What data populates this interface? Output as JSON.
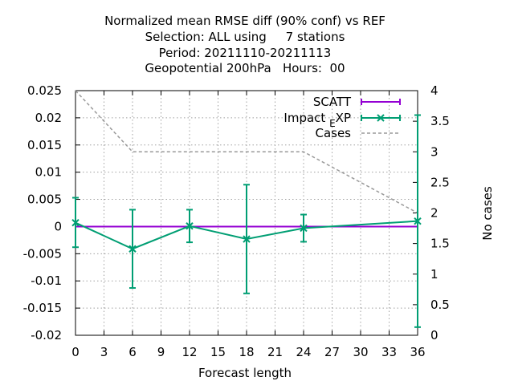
{
  "chart_data": {
    "type": "line",
    "title_lines": [
      "Normalized mean RMSE diff (90% conf) vs REF",
      "Selection: ALL using     7 stations",
      "Period: 20211110-20211113",
      "Geopotential 200hPa   Hours:  00"
    ],
    "xlabel": "Forecast length",
    "ylabel": "",
    "y2label": "No cases",
    "xlim": [
      0,
      36
    ],
    "ylim": [
      -0.02,
      0.025
    ],
    "y2lim": [
      0,
      4
    ],
    "xticks": [
      "0",
      "3",
      "6",
      "9",
      "12",
      "15",
      "18",
      "21",
      "24",
      "27",
      "30",
      "33",
      "36"
    ],
    "yticks": [
      "0.025",
      "0.02",
      "0.015",
      "0.01",
      "0.005",
      "0",
      "-0.005",
      "-0.01",
      "-0.015",
      "-0.02"
    ],
    "y2ticks": [
      "4",
      "3.5",
      "3",
      "2.5",
      "2",
      "1.5",
      "1",
      "0.5",
      "0"
    ],
    "grid": true,
    "legend_position": "top-right",
    "legend": {
      "scatt": "SCATT",
      "impact_prefix": "Impact",
      "impact_sub": "E",
      "impact_suffix": "XP",
      "cases": "Cases"
    },
    "series": [
      {
        "name": "SCATT",
        "color": "#9400d3",
        "x": [
          0,
          6,
          12,
          18,
          24,
          36
        ],
        "y": [
          0,
          0,
          0,
          0,
          0,
          0
        ]
      },
      {
        "name": "Impact_EXP",
        "color": "#009e73",
        "x": [
          0,
          6,
          12,
          18,
          24,
          36
        ],
        "y": [
          0.0007,
          -0.0041,
          0.0001,
          -0.0023,
          -0.0003,
          0.001
        ],
        "err_low": [
          -0.0038,
          -0.0113,
          -0.0029,
          -0.0123,
          -0.0028,
          -0.0185
        ],
        "err_high": [
          0.0053,
          0.0031,
          0.0031,
          0.0077,
          0.0022,
          0.0205
        ]
      },
      {
        "name": "Cases",
        "color": "#999999",
        "axis": "y2",
        "x": [
          0,
          6,
          12,
          18,
          24,
          36
        ],
        "y": [
          4,
          3,
          3,
          3,
          3,
          2
        ]
      }
    ]
  }
}
